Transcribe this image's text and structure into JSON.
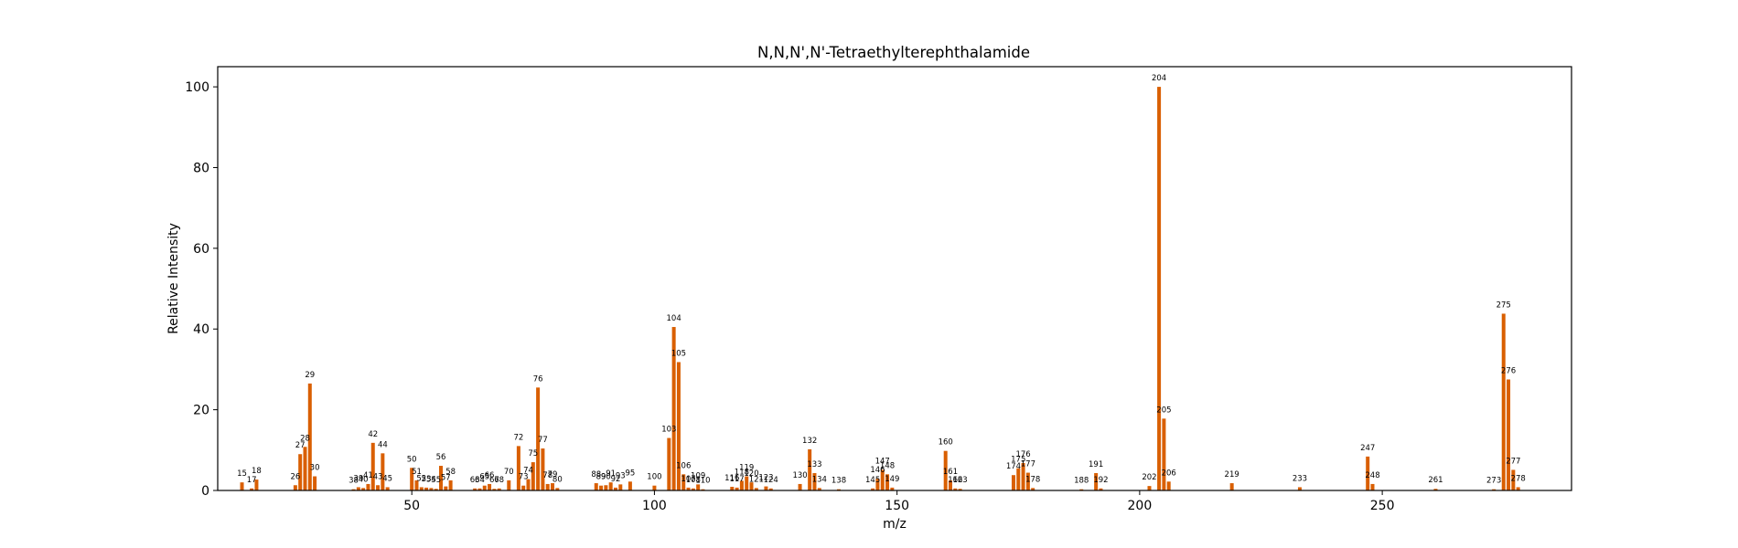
{
  "chart_data": {
    "type": "bar",
    "title": "N,N,N',N'-Tetraethylterephthalamide",
    "xlabel": "m/z",
    "ylabel": "Relative Intensity",
    "xlim": [
      10,
      289
    ],
    "ylim": [
      0,
      105
    ],
    "xticks": [
      50,
      100,
      150,
      200,
      250
    ],
    "yticks": [
      0,
      20,
      40,
      60,
      80,
      100
    ],
    "grid": false,
    "color": "#d95f02",
    "peaks": [
      {
        "x": 15,
        "y": 2.0,
        "label": "15"
      },
      {
        "x": 17,
        "y": 0.5,
        "label": "17"
      },
      {
        "x": 18,
        "y": 2.7,
        "label": "18"
      },
      {
        "x": 26,
        "y": 1.3,
        "label": "26"
      },
      {
        "x": 27,
        "y": 9.0,
        "label": "27"
      },
      {
        "x": 28,
        "y": 10.8,
        "label": "28"
      },
      {
        "x": 29,
        "y": 26.5,
        "label": "29"
      },
      {
        "x": 30,
        "y": 3.5,
        "label": "30"
      },
      {
        "x": 38,
        "y": 0.3,
        "label": "38"
      },
      {
        "x": 39,
        "y": 0.8,
        "label": "39"
      },
      {
        "x": 40,
        "y": 0.6,
        "label": "40"
      },
      {
        "x": 41,
        "y": 1.6,
        "label": "41"
      },
      {
        "x": 42,
        "y": 11.8,
        "label": "42"
      },
      {
        "x": 43,
        "y": 1.3,
        "label": "43"
      },
      {
        "x": 44,
        "y": 9.2,
        "label": "44"
      },
      {
        "x": 45,
        "y": 0.8,
        "label": "45"
      },
      {
        "x": 50,
        "y": 5.6,
        "label": "50"
      },
      {
        "x": 51,
        "y": 2.5,
        "label": "51"
      },
      {
        "x": 52,
        "y": 0.8,
        "label": "52"
      },
      {
        "x": 53,
        "y": 0.7,
        "label": "53"
      },
      {
        "x": 54,
        "y": 0.6,
        "label": "54"
      },
      {
        "x": 55,
        "y": 0.4,
        "label": "55"
      },
      {
        "x": 56,
        "y": 6.1,
        "label": "56"
      },
      {
        "x": 57,
        "y": 1.0,
        "label": "57"
      },
      {
        "x": 58,
        "y": 2.5,
        "label": "58"
      },
      {
        "x": 63,
        "y": 0.5,
        "label": "63"
      },
      {
        "x": 64,
        "y": 0.5,
        "label": "64"
      },
      {
        "x": 65,
        "y": 1.2,
        "label": "65"
      },
      {
        "x": 66,
        "y": 1.6,
        "label": "66"
      },
      {
        "x": 67,
        "y": 0.4,
        "label": "67"
      },
      {
        "x": 68,
        "y": 0.5,
        "label": "68"
      },
      {
        "x": 70,
        "y": 2.5,
        "label": "70"
      },
      {
        "x": 72,
        "y": 11.0,
        "label": "72"
      },
      {
        "x": 73,
        "y": 1.2,
        "label": "73"
      },
      {
        "x": 74,
        "y": 2.8,
        "label": "74"
      },
      {
        "x": 75,
        "y": 7.0,
        "label": "75"
      },
      {
        "x": 76,
        "y": 25.5,
        "label": "76"
      },
      {
        "x": 77,
        "y": 10.4,
        "label": "77"
      },
      {
        "x": 78,
        "y": 1.6,
        "label": "78"
      },
      {
        "x": 79,
        "y": 1.8,
        "label": "79"
      },
      {
        "x": 80,
        "y": 0.6,
        "label": "80"
      },
      {
        "x": 88,
        "y": 1.8,
        "label": "88"
      },
      {
        "x": 89,
        "y": 1.2,
        "label": "89"
      },
      {
        "x": 90,
        "y": 1.3,
        "label": "90"
      },
      {
        "x": 91,
        "y": 2.0,
        "label": "91"
      },
      {
        "x": 92,
        "y": 0.7,
        "label": "92"
      },
      {
        "x": 93,
        "y": 1.5,
        "label": "93"
      },
      {
        "x": 95,
        "y": 2.2,
        "label": "95"
      },
      {
        "x": 100,
        "y": 1.2,
        "label": "100"
      },
      {
        "x": 103,
        "y": 13.0,
        "label": "103"
      },
      {
        "x": 104,
        "y": 40.5,
        "label": "104"
      },
      {
        "x": 105,
        "y": 31.8,
        "label": "105"
      },
      {
        "x": 106,
        "y": 4.0,
        "label": "106"
      },
      {
        "x": 107,
        "y": 0.7,
        "label": "107"
      },
      {
        "x": 108,
        "y": 0.5,
        "label": "108"
      },
      {
        "x": 109,
        "y": 1.5,
        "label": "109"
      },
      {
        "x": 110,
        "y": 0.3,
        "label": "110"
      },
      {
        "x": 116,
        "y": 0.9,
        "label": "116"
      },
      {
        "x": 117,
        "y": 0.7,
        "label": "117"
      },
      {
        "x": 118,
        "y": 2.4,
        "label": "118"
      },
      {
        "x": 119,
        "y": 3.5,
        "label": "119"
      },
      {
        "x": 120,
        "y": 2.0,
        "label": "120"
      },
      {
        "x": 121,
        "y": 0.6,
        "label": "121"
      },
      {
        "x": 123,
        "y": 1.0,
        "label": "123"
      },
      {
        "x": 124,
        "y": 0.5,
        "label": "124"
      },
      {
        "x": 130,
        "y": 1.6,
        "label": "130"
      },
      {
        "x": 132,
        "y": 10.2,
        "label": "132"
      },
      {
        "x": 133,
        "y": 4.3,
        "label": "133"
      },
      {
        "x": 134,
        "y": 0.6,
        "label": "134"
      },
      {
        "x": 138,
        "y": 0.3,
        "label": "138"
      },
      {
        "x": 145,
        "y": 0.5,
        "label": "145"
      },
      {
        "x": 146,
        "y": 2.9,
        "label": "146"
      },
      {
        "x": 147,
        "y": 5.1,
        "label": "147"
      },
      {
        "x": 148,
        "y": 4.0,
        "label": "148"
      },
      {
        "x": 149,
        "y": 0.7,
        "label": "149"
      },
      {
        "x": 160,
        "y": 9.8,
        "label": "160"
      },
      {
        "x": 161,
        "y": 2.5,
        "label": "161"
      },
      {
        "x": 162,
        "y": 0.5,
        "label": "162"
      },
      {
        "x": 163,
        "y": 0.4,
        "label": "163"
      },
      {
        "x": 174,
        "y": 3.8,
        "label": "174"
      },
      {
        "x": 175,
        "y": 5.5,
        "label": "175"
      },
      {
        "x": 176,
        "y": 6.8,
        "label": "176"
      },
      {
        "x": 177,
        "y": 4.4,
        "label": "177"
      },
      {
        "x": 178,
        "y": 0.6,
        "label": "178"
      },
      {
        "x": 188,
        "y": 0.3,
        "label": "188"
      },
      {
        "x": 191,
        "y": 4.3,
        "label": "191"
      },
      {
        "x": 192,
        "y": 0.5,
        "label": "192"
      },
      {
        "x": 202,
        "y": 1.1,
        "label": "202"
      },
      {
        "x": 204,
        "y": 100.0,
        "label": "204"
      },
      {
        "x": 205,
        "y": 17.8,
        "label": "205"
      },
      {
        "x": 206,
        "y": 2.2,
        "label": "206"
      },
      {
        "x": 219,
        "y": 1.8,
        "label": "219"
      },
      {
        "x": 233,
        "y": 0.8,
        "label": "233"
      },
      {
        "x": 247,
        "y": 8.4,
        "label": "247"
      },
      {
        "x": 248,
        "y": 1.6,
        "label": "248"
      },
      {
        "x": 261,
        "y": 0.4,
        "label": "261"
      },
      {
        "x": 273,
        "y": 0.3,
        "label": "273"
      },
      {
        "x": 275,
        "y": 43.8,
        "label": "275"
      },
      {
        "x": 276,
        "y": 27.5,
        "label": "276"
      },
      {
        "x": 277,
        "y": 5.1,
        "label": "277"
      },
      {
        "x": 278,
        "y": 0.8,
        "label": "278"
      }
    ]
  }
}
